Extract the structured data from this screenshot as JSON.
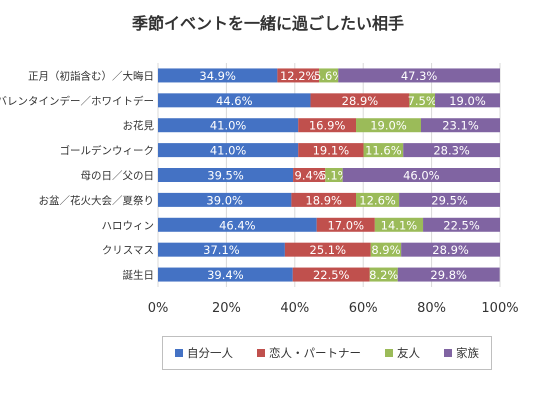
{
  "chart_data": {
    "type": "bar",
    "orientation": "horizontal",
    "stacked": true,
    "title": "季節イベントを一緒に過ごしたい相手",
    "categories": [
      "正月（初詣含む）／大晦日",
      "バレンタインデー／ホワイトデー",
      "お花見",
      "ゴールデンウィーク",
      "母の日／父の日",
      "お盆／花火大会／夏祭り",
      "ハロウィン",
      "クリスマス",
      "誕生日"
    ],
    "series": [
      {
        "name": "自分一人",
        "color": "#4472c4",
        "values": [
          34.9,
          44.6,
          41.0,
          41.0,
          39.5,
          39.0,
          46.4,
          37.1,
          39.4
        ]
      },
      {
        "name": "恋人・パートナー",
        "color": "#c0504d",
        "values": [
          12.2,
          28.9,
          16.9,
          19.1,
          9.4,
          18.9,
          17.0,
          25.1,
          22.5
        ]
      },
      {
        "name": "友人",
        "color": "#9bbb59",
        "values": [
          5.6,
          7.5,
          19.0,
          11.6,
          5.1,
          12.6,
          14.1,
          8.9,
          8.2
        ]
      },
      {
        "name": "家族",
        "color": "#8064a2",
        "values": [
          47.3,
          19.0,
          23.1,
          28.3,
          46.0,
          29.5,
          22.5,
          28.9,
          29.8
        ]
      }
    ],
    "data_labels": [
      [
        "34.9%",
        "12.2%",
        "5.6%",
        "47.3%"
      ],
      [
        "44.6%",
        "28.9%",
        "7.5%",
        "19.0%"
      ],
      [
        "41.0%",
        "16.9%",
        "19.0%",
        "23.1%"
      ],
      [
        "41.0%",
        "19.1%",
        "11.6%",
        "28.3%"
      ],
      [
        "39.5%",
        "9.4%",
        "5.1%",
        "46.0%"
      ],
      [
        "39.0%",
        "18.9%",
        "12.6%",
        "29.5%"
      ],
      [
        "46.4%",
        "17.0%",
        "14.1%",
        "22.5%"
      ],
      [
        "37.1%",
        "25.1%",
        "8.9%",
        "28.9%"
      ],
      [
        "39.4%",
        "22.5%",
        "8.2%",
        "29.8%"
      ]
    ],
    "xlim": [
      0,
      100
    ],
    "xticks": [
      "0%",
      "20%",
      "40%",
      "60%",
      "80%",
      "100%"
    ],
    "grid": true,
    "legend_position": "bottom"
  }
}
